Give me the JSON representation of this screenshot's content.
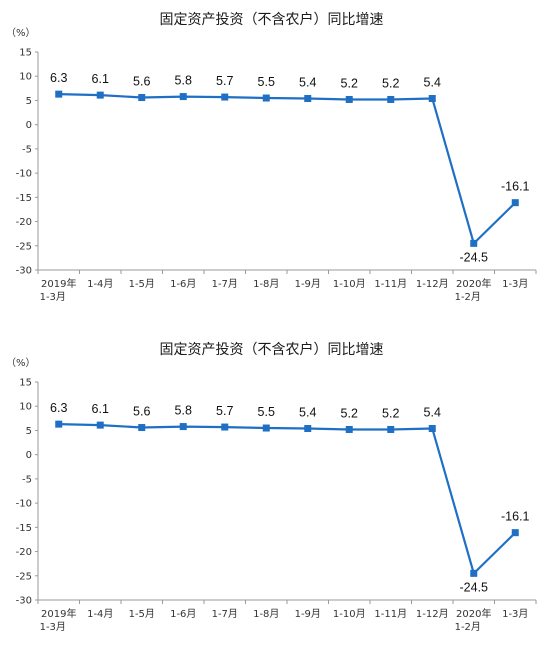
{
  "chart_data": [
    {
      "type": "line",
      "title": "固定资产投资（不含农户）同比增速",
      "unit": "（%）",
      "categories": [
        [
          "2019年",
          "1-3月"
        ],
        [
          "1-4月"
        ],
        [
          "1-5月"
        ],
        [
          "1-6月"
        ],
        [
          "1-7月"
        ],
        [
          "1-8月"
        ],
        [
          "1-9月"
        ],
        [
          "1-10月"
        ],
        [
          "1-11月"
        ],
        [
          "1-12月"
        ],
        [
          "2020年",
          "1-2月"
        ],
        [
          "1-3月"
        ]
      ],
      "values": [
        6.3,
        6.1,
        5.6,
        5.8,
        5.7,
        5.5,
        5.4,
        5.2,
        5.2,
        5.4,
        -24.5,
        -16.1
      ],
      "data_labels": [
        "6.3",
        "6.1",
        "5.6",
        "5.8",
        "5.7",
        "5.5",
        "5.4",
        "5.2",
        "5.2",
        "5.4",
        "-24.5",
        "-16.1"
      ],
      "yticks": [
        "15",
        "10",
        "5",
        "0",
        "-5",
        "-10",
        "-15",
        "-20",
        "-25",
        "-30"
      ],
      "ylim": [
        -30,
        15
      ],
      "grid": false,
      "line_color": "#1f6fc5"
    },
    {
      "type": "line",
      "title": "固定资产投资（不含农户）同比增速",
      "unit": "（%）",
      "categories": [
        [
          "2019年",
          "1-3月"
        ],
        [
          "1-4月"
        ],
        [
          "1-5月"
        ],
        [
          "1-6月"
        ],
        [
          "1-7月"
        ],
        [
          "1-8月"
        ],
        [
          "1-9月"
        ],
        [
          "1-10月"
        ],
        [
          "1-11月"
        ],
        [
          "1-12月"
        ],
        [
          "2020年",
          "1-2月"
        ],
        [
          "1-3月"
        ]
      ],
      "values": [
        6.3,
        6.1,
        5.6,
        5.8,
        5.7,
        5.5,
        5.4,
        5.2,
        5.2,
        5.4,
        -24.5,
        -16.1
      ],
      "data_labels": [
        "6.3",
        "6.1",
        "5.6",
        "5.8",
        "5.7",
        "5.5",
        "5.4",
        "5.2",
        "5.2",
        "5.4",
        "-24.5",
        "-16.1"
      ],
      "yticks": [
        "15",
        "10",
        "5",
        "0",
        "-5",
        "-10",
        "-15",
        "-20",
        "-25",
        "-30"
      ],
      "ylim": [
        -30,
        15
      ],
      "grid": false,
      "line_color": "#1f6fc5"
    }
  ]
}
